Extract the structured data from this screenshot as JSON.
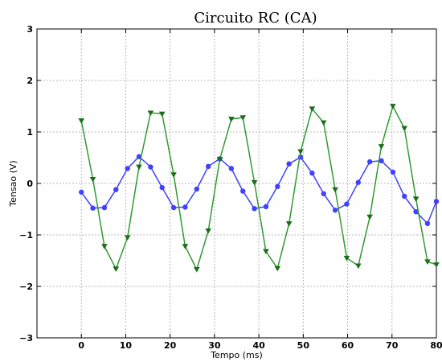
{
  "chart_data": {
    "type": "line",
    "title": "Circuito RC (CA)",
    "xlabel": "Tempo (ms)",
    "ylabel": "Tensao (V)",
    "xlim": [
      -10,
      80
    ],
    "ylim": [
      -3,
      3
    ],
    "xticks": [
      0,
      10,
      20,
      30,
      40,
      50,
      60,
      70,
      80
    ],
    "yticks": [
      -3,
      -2,
      -1,
      0,
      1,
      2,
      3
    ],
    "grid": true,
    "legend": "none",
    "series": [
      {
        "color": "#4040ff",
        "marker": "circle",
        "x": [
          0,
          2.6,
          5.2,
          7.8,
          10.4,
          13.0,
          15.6,
          18.2,
          20.8,
          23.4,
          26.0,
          28.6,
          31.2,
          33.8,
          36.4,
          39.0,
          41.6,
          44.2,
          46.8,
          49.4,
          52.0,
          54.6,
          57.2,
          59.8,
          62.4,
          65.0,
          67.6,
          70.2,
          72.8,
          75.4,
          78.0,
          80.0
        ],
        "values": [
          -0.17,
          -0.48,
          -0.47,
          -0.12,
          0.29,
          0.52,
          0.32,
          -0.08,
          -0.47,
          -0.46,
          -0.11,
          0.33,
          0.48,
          0.29,
          -0.15,
          -0.49,
          -0.45,
          -0.06,
          0.38,
          0.51,
          0.2,
          -0.2,
          -0.52,
          -0.4,
          0.02,
          0.42,
          0.44,
          0.22,
          -0.25,
          -0.55,
          -0.78,
          -0.35
        ]
      },
      {
        "color": "#339933",
        "marker": "triangle-down",
        "x": [
          0,
          2.6,
          5.2,
          7.8,
          10.4,
          13.0,
          15.6,
          18.2,
          20.8,
          23.4,
          26.0,
          28.6,
          31.2,
          33.8,
          36.4,
          39.0,
          41.6,
          44.2,
          46.8,
          49.4,
          52.0,
          54.6,
          57.2,
          59.8,
          62.4,
          65.0,
          67.6,
          70.2,
          72.8,
          75.4,
          78.0,
          80.0
        ],
        "values": [
          1.22,
          0.08,
          -1.22,
          -1.66,
          -1.05,
          0.32,
          1.37,
          1.35,
          0.17,
          -1.22,
          -1.67,
          -0.92,
          0.47,
          1.25,
          1.28,
          0.02,
          -1.32,
          -1.65,
          -0.78,
          0.62,
          1.45,
          1.18,
          -0.12,
          -1.45,
          -1.6,
          -0.65,
          0.72,
          1.5,
          1.07,
          -0.3,
          -1.52,
          -1.58
        ]
      }
    ]
  }
}
